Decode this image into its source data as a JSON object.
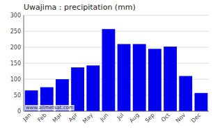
{
  "chart_data": {
    "type": "bar",
    "title": "Uwajima : precipitation (mm)",
    "categories": [
      "Jan",
      "Feb",
      "Mar",
      "Apr",
      "May",
      "Jun",
      "Jul",
      "Aug",
      "Sep",
      "Oct",
      "Nov",
      "Dec"
    ],
    "values": [
      65,
      75,
      100,
      137,
      143,
      257,
      210,
      210,
      195,
      202,
      110,
      57
    ],
    "color": "#0000ee",
    "ylim": [
      0,
      300
    ],
    "yticks": [
      0,
      50,
      100,
      150,
      200,
      250,
      300
    ],
    "grid": true,
    "annotations": [
      "www.allmetsat.com"
    ]
  }
}
